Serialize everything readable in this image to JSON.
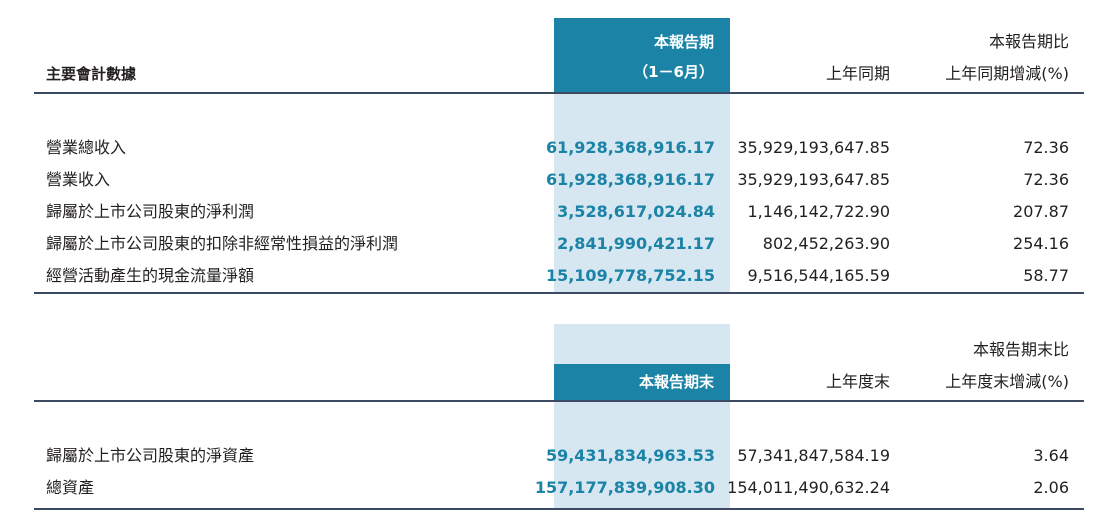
{
  "section1": {
    "header": {
      "col_item": "主要會計數據",
      "col_current_line1": "本報告期",
      "col_current_line2": "（1－6月）",
      "col_prior": "上年同期",
      "col_change_line1": "本報告期比",
      "col_change_line2": "上年同期增減(%)"
    },
    "rows": [
      {
        "label": "營業總收入",
        "current": "61,928,368,916.17",
        "prior": "35,929,193,647.85",
        "change": "72.36"
      },
      {
        "label": "營業收入",
        "current": "61,928,368,916.17",
        "prior": "35,929,193,647.85",
        "change": "72.36"
      },
      {
        "label": "歸屬於上市公司股東的淨利潤",
        "current": "3,528,617,024.84",
        "prior": "1,146,142,722.90",
        "change": "207.87"
      },
      {
        "label": "歸屬於上市公司股東的扣除非經常性損益的淨利潤",
        "current": "2,841,990,421.17",
        "prior": "802,452,263.90",
        "change": "254.16"
      },
      {
        "label": "經營活動產生的現金流量淨額",
        "current": "15,109,778,752.15",
        "prior": "9,516,544,165.59",
        "change": "58.77"
      }
    ]
  },
  "section2": {
    "header": {
      "col_current": "本報告期末",
      "col_prior": "上年度末",
      "col_change_line1": "本報告期末比",
      "col_change_line2": "上年度末增減(%)"
    },
    "rows": [
      {
        "label": "歸屬於上市公司股東的淨資產",
        "current": "59,431,834,963.53",
        "prior": "57,341,847,584.19",
        "change": "3.64"
      },
      {
        "label": "總資產",
        "current": "157,177,839,908.30",
        "prior": "154,011,490,632.24",
        "change": "2.06"
      }
    ]
  },
  "colors": {
    "header_blue": "#1a83a6",
    "highlight_blue": "#d6e7f1",
    "rule": "#3d4a63"
  }
}
